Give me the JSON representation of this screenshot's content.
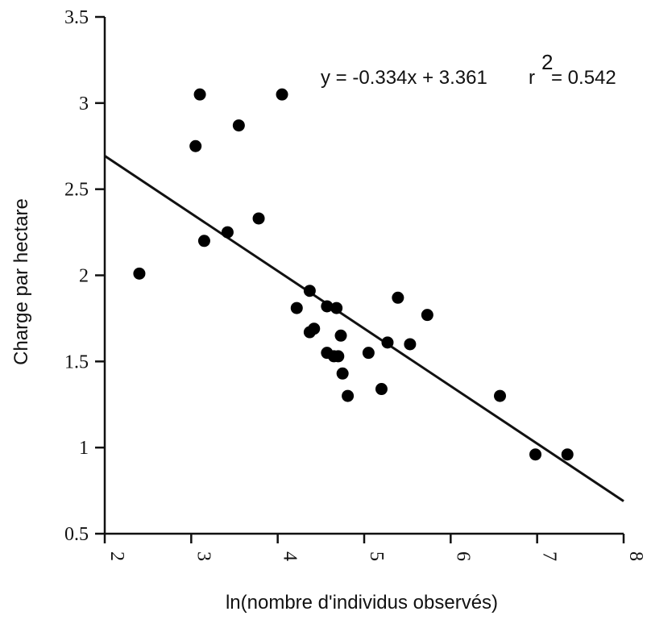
{
  "chart_data": {
    "type": "scatter",
    "title": "",
    "xlabel": "ln(nombre d'individus observés)",
    "ylabel": "Charge par hectare",
    "xlim": [
      2,
      8
    ],
    "ylim": [
      0.5,
      3.5
    ],
    "x_ticks": [
      "2",
      "3",
      "4",
      "5",
      "6",
      "7",
      "8"
    ],
    "y_ticks": [
      "0.5",
      "1",
      "1.5",
      "2",
      "2.5",
      "3",
      "3.5"
    ],
    "grid": false,
    "series": [
      {
        "points": [
          {
            "x": 2.4,
            "y": 2.01
          },
          {
            "x": 3.05,
            "y": 2.75
          },
          {
            "x": 3.1,
            "y": 3.05
          },
          {
            "x": 3.15,
            "y": 2.2
          },
          {
            "x": 3.42,
            "y": 2.25
          },
          {
            "x": 3.55,
            "y": 2.87
          },
          {
            "x": 3.78,
            "y": 2.33
          },
          {
            "x": 4.05,
            "y": 3.05
          },
          {
            "x": 4.22,
            "y": 1.81
          },
          {
            "x": 4.37,
            "y": 1.91
          },
          {
            "x": 4.37,
            "y": 1.67
          },
          {
            "x": 4.42,
            "y": 1.69
          },
          {
            "x": 4.57,
            "y": 1.82
          },
          {
            "x": 4.57,
            "y": 1.55
          },
          {
            "x": 4.65,
            "y": 1.53
          },
          {
            "x": 4.7,
            "y": 1.53
          },
          {
            "x": 4.68,
            "y": 1.81
          },
          {
            "x": 4.73,
            "y": 1.65
          },
          {
            "x": 4.75,
            "y": 1.43
          },
          {
            "x": 4.81,
            "y": 1.3
          },
          {
            "x": 5.05,
            "y": 1.55
          },
          {
            "x": 5.2,
            "y": 1.34
          },
          {
            "x": 5.27,
            "y": 1.61
          },
          {
            "x": 5.39,
            "y": 1.87
          },
          {
            "x": 5.53,
            "y": 1.6
          },
          {
            "x": 5.73,
            "y": 1.77
          },
          {
            "x": 6.57,
            "y": 1.3
          },
          {
            "x": 6.98,
            "y": 0.96
          },
          {
            "x": 7.35,
            "y": 0.96
          }
        ]
      }
    ],
    "regression": {
      "slope": -0.334,
      "intercept": 3.361,
      "x_range": [
        2,
        8
      ]
    },
    "annotation": {
      "equation": "y =  -0.334x + 3.361",
      "r_symbol": "r",
      "r_superscript": "2",
      "r_value": " = 0.542"
    }
  }
}
